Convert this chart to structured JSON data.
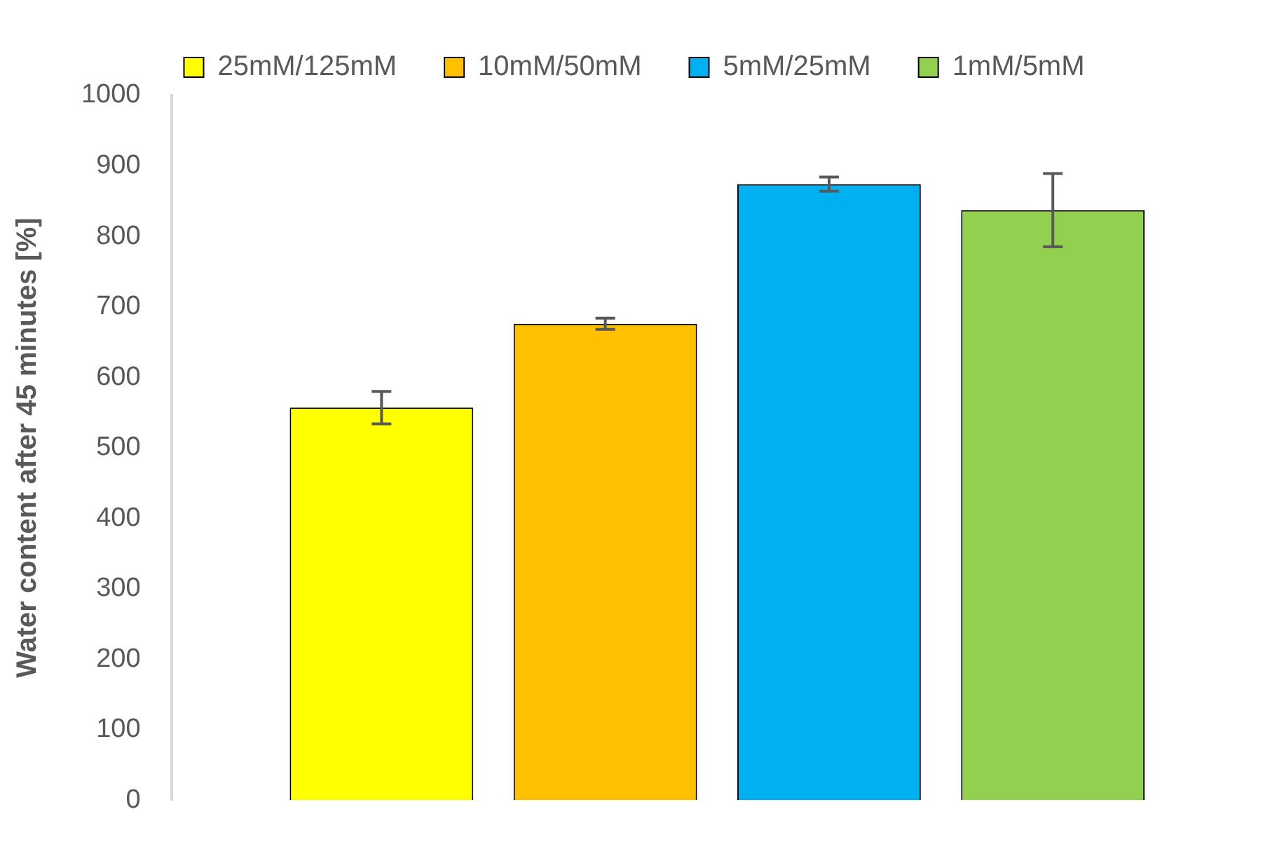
{
  "chart_data": {
    "type": "bar",
    "ylabel": "Water content after 45 minutes [%]",
    "categories": [
      null
    ],
    "series": [
      {
        "name": "25mM/125mM",
        "color": "#ffff00",
        "values": [
          557
        ],
        "errors": [
          23
        ]
      },
      {
        "name": "10mM/50mM",
        "color": "#ffc000",
        "values": [
          676
        ],
        "errors": [
          8
        ]
      },
      {
        "name": "5mM/25mM",
        "color": "#00b0f0",
        "values": [
          874
        ],
        "errors": [
          10
        ]
      },
      {
        "name": "1mM/5mM",
        "color": "#92d050",
        "values": [
          837
        ],
        "errors": [
          52
        ]
      }
    ],
    "ylim": [
      0,
      1000
    ],
    "yticks": [
      0,
      100,
      200,
      300,
      400,
      500,
      600,
      700,
      800,
      900,
      1000
    ],
    "grid": false,
    "legend": "top"
  }
}
